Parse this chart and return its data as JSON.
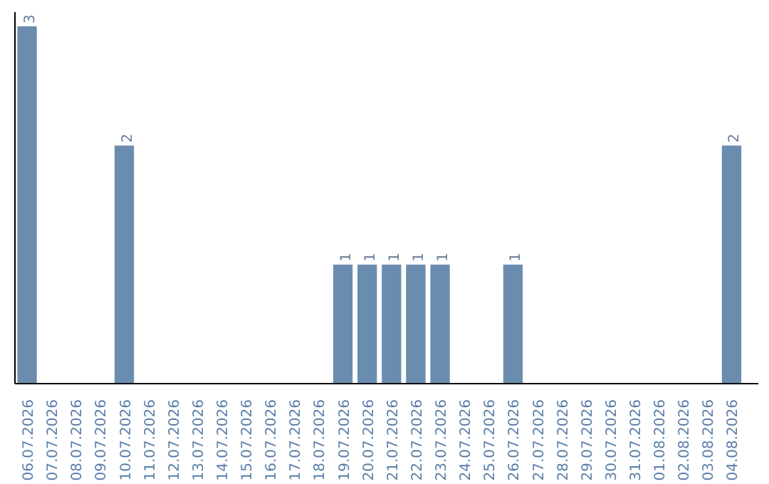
{
  "chart_data": {
    "type": "bar",
    "categories": [
      "06.07.2026",
      "07.07.2026",
      "08.07.2026",
      "09.07.2026",
      "10.07.2026",
      "11.07.2026",
      "12.07.2026",
      "13.07.2026",
      "14.07.2026",
      "15.07.2026",
      "16.07.2026",
      "17.07.2026",
      "18.07.2026",
      "19.07.2026",
      "20.07.2026",
      "21.07.2026",
      "22.07.2026",
      "23.07.2026",
      "24.07.2026",
      "25.07.2026",
      "26.07.2026",
      "27.07.2026",
      "28.07.2026",
      "29.07.2026",
      "30.07.2026",
      "31.07.2026",
      "01.08.2026",
      "02.08.2026",
      "03.08.2026",
      "04.08.2026"
    ],
    "values": [
      3,
      0,
      0,
      0,
      2,
      0,
      0,
      0,
      0,
      0,
      0,
      0,
      0,
      1,
      1,
      1,
      1,
      1,
      0,
      0,
      1,
      0,
      0,
      0,
      0,
      0,
      0,
      0,
      0,
      2
    ],
    "value_labels": [
      "3",
      null,
      null,
      null,
      "2",
      null,
      null,
      null,
      null,
      null,
      null,
      null,
      null,
      "1",
      "1",
      "1",
      "1",
      "1",
      null,
      null,
      "1",
      null,
      null,
      null,
      null,
      null,
      null,
      null,
      null,
      "2"
    ],
    "color": "#6a8caf",
    "grid": false,
    "tick_labels": "x"
  }
}
